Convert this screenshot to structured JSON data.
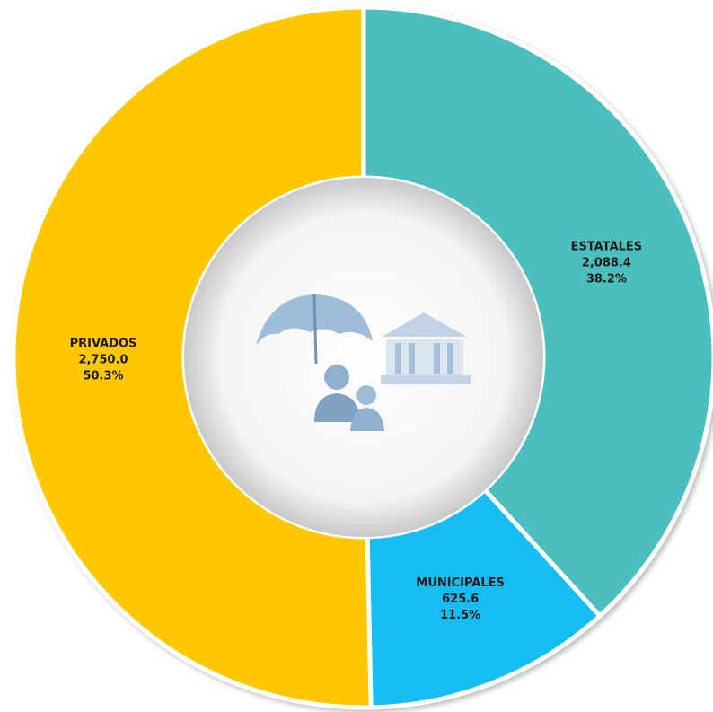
{
  "chart_data": {
    "type": "donut",
    "categories": [
      "ESTATALES",
      "MUNICIPALES",
      "PRIVADOS"
    ],
    "values": [
      2088.4,
      625.6,
      2750.0
    ],
    "value_labels": [
      "2,088.4",
      "625.6",
      "2,750.0"
    ],
    "percents": [
      38.2,
      11.5,
      50.3
    ],
    "percent_labels": [
      "38.2%",
      "11.5%",
      "50.3%"
    ],
    "colors": [
      "#4bbfbd",
      "#12bdf2",
      "#ffc800"
    ]
  }
}
